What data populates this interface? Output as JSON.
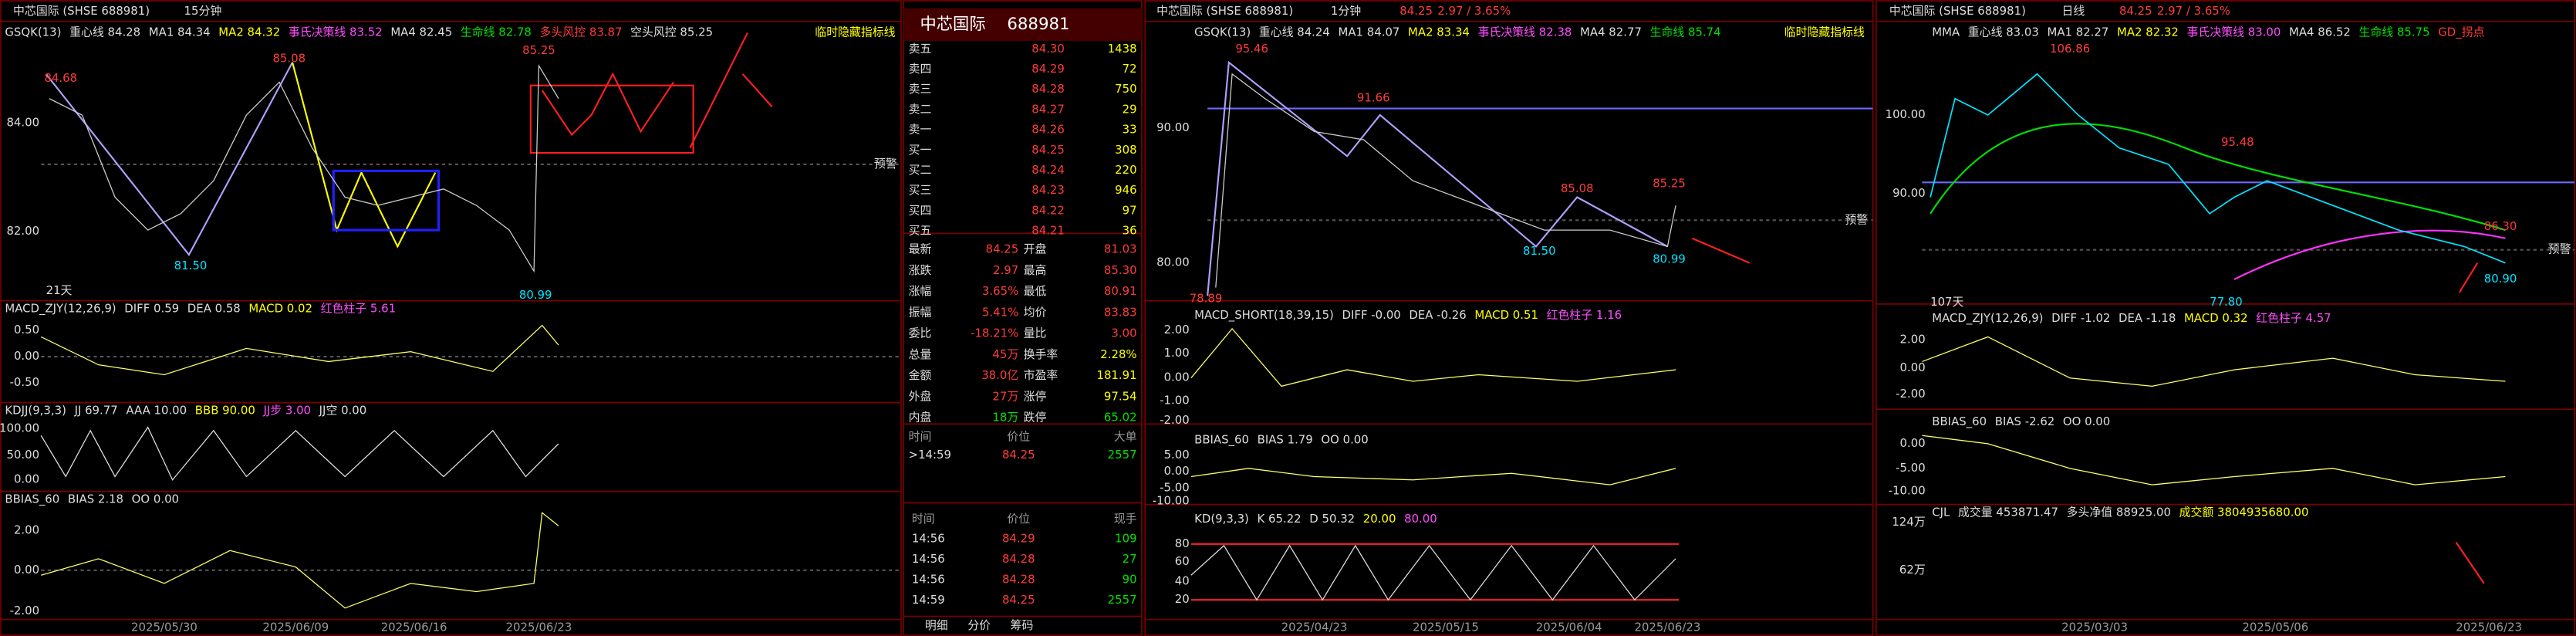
{
  "left": {
    "title": "中芯国际 (SHSE 688981)",
    "period": "15分钟",
    "header": [
      "GSQK(13)",
      "重心线 84.28",
      "MA1 84.34",
      "MA2 84.32",
      "事氏决策线 83.52",
      "MA4 82.45",
      "生命线 82.78",
      "多头风控 83.87",
      "空头风控 85.25"
    ],
    "hidden_note": "临时隐藏指标线",
    "price_labels": [
      "84.68",
      "85.08",
      "85.25",
      "81.50",
      "80.99"
    ],
    "y_labels": [
      "84.00",
      "82.00"
    ],
    "alert": "预警",
    "days": "21天",
    "macd": {
      "header": [
        "MACD_ZJY(12,26,9)",
        "DIFF 0.59",
        "DEA 0.58",
        "MACD 0.02",
        "红色柱子 5.61"
      ],
      "y_labels": [
        "0.50",
        "0.00",
        "-0.50"
      ]
    },
    "kdj": {
      "header": [
        "KDJJ(9,3,3)",
        "JJ 69.77",
        "AAA 10.00",
        "BBB 90.00",
        "JJ步 3.00",
        "JJ空 0.00"
      ],
      "y_labels": [
        "100.00",
        "50.00",
        "0.00"
      ]
    },
    "bias": {
      "header": [
        "BBIAS_60",
        "BIAS 2.18",
        "OO 0.00"
      ],
      "y_labels": [
        "2.00",
        "0.00",
        "-2.00"
      ]
    },
    "dates": [
      "2025/05/30",
      "2025/06/09",
      "2025/06/16",
      "2025/06/23"
    ]
  },
  "quote": {
    "title": "中芯国际",
    "code": "688981",
    "book": [
      [
        "卖五",
        "84.30",
        "1438"
      ],
      [
        "卖四",
        "84.29",
        "72"
      ],
      [
        "卖三",
        "84.28",
        "750"
      ],
      [
        "卖二",
        "84.27",
        "29"
      ],
      [
        "卖一",
        "84.26",
        "33"
      ],
      [
        "买一",
        "84.25",
        "308"
      ],
      [
        "买二",
        "84.24",
        "220"
      ],
      [
        "买三",
        "84.23",
        "946"
      ],
      [
        "买四",
        "84.22",
        "97"
      ],
      [
        "买五",
        "84.21",
        "36"
      ]
    ],
    "stats": [
      [
        "最新",
        "84.25",
        "开盘",
        "81.03"
      ],
      [
        "涨跌",
        "2.97",
        "最高",
        "85.30"
      ],
      [
        "涨幅",
        "3.65%",
        "最低",
        "80.91"
      ],
      [
        "振幅",
        "5.41%",
        "均价",
        "83.83"
      ],
      [
        "委比",
        "-18.21%",
        "量比",
        "3.00"
      ],
      [
        "总量",
        "45万",
        "换手率",
        "2.28%"
      ],
      [
        "金额",
        "38.0亿",
        "市盈率",
        "181.91"
      ],
      [
        "外盘",
        "27万",
        "涨停",
        "97.54"
      ],
      [
        "内盘",
        "18万",
        "跌停",
        "65.02"
      ]
    ],
    "big_header": [
      "时间",
      "价位",
      "大单"
    ],
    "big_rows": [
      [
        ">14:59",
        "84.25",
        "2557"
      ]
    ],
    "tick_header": [
      "时间",
      "价位",
      "现手"
    ],
    "ticks": [
      [
        "14:56",
        "84.29",
        "109"
      ],
      [
        "14:56",
        "84.28",
        "27"
      ],
      [
        "14:56",
        "84.28",
        "90"
      ],
      [
        "14:59",
        "84.25",
        "2557"
      ]
    ],
    "tabs": [
      "明细",
      "分价",
      "筹码"
    ]
  },
  "middle": {
    "title": "中芯国际 (SHSE 688981)",
    "period": "1分钟",
    "price": "84.25",
    "change": "2.97 / 3.65%",
    "header": [
      "GSQK(13)",
      "重心线 84.24",
      "MA1 84.07",
      "MA2 83.34",
      "事氏决策线 82.38",
      "MA4 82.77",
      "生命线 85.74"
    ],
    "hidden_note": "临时隐藏指标线",
    "price_labels": [
      "95.46",
      "91.66",
      "85.08",
      "85.25",
      "81.50",
      "80.99",
      "78.89"
    ],
    "y_labels": [
      "90.00",
      "80.00"
    ],
    "alert": "预警",
    "macd": {
      "header": [
        "MACD_SHORT(18,39,15)",
        "DIFF -0.00",
        "DEA -0.26",
        "MACD 0.51",
        "红色柱子 1.16"
      ],
      "y_labels": [
        "2.00",
        "1.00",
        "0.00",
        "-1.00",
        "-2.00"
      ]
    },
    "bias": {
      "header": [
        "BBIAS_60",
        "BIAS 1.79",
        "OO 0.00"
      ],
      "y_labels": [
        "5.00",
        "0.00",
        "-5.00",
        "-10.00"
      ]
    },
    "kd": {
      "header": [
        "KD(9,3,3)",
        "K 65.22",
        "D 50.32",
        "20.00",
        "80.00"
      ],
      "y_labels": [
        "80",
        "60",
        "40",
        "20"
      ]
    },
    "dates": [
      "2025/04/23",
      "2025/05/15",
      "2025/06/04",
      "2025/06/23"
    ]
  },
  "right": {
    "title": "中芯国际 (SHSE 688981)",
    "period": "日线",
    "price": "84.25",
    "change": "2.97 / 3.65%",
    "header": [
      "MMA",
      "重心线 83.03",
      "MA1 82.27",
      "MA2 82.32",
      "事氏决策线 83.00",
      "MA4 86.52",
      "生命线 85.75",
      "GD_拐点"
    ],
    "price_labels": [
      "106.86",
      "95.48",
      "86.30",
      "80.90",
      "77.80"
    ],
    "y_labels": [
      "100.00",
      "90.00"
    ],
    "alert": "预警",
    "days": "107天",
    "macd": {
      "header": [
        "MACD_ZJY(12,26,9)",
        "DIFF -1.02",
        "DEA -1.18",
        "MACD 0.32",
        "红色柱子 4.57"
      ],
      "y_labels": [
        "2.00",
        "0.00",
        "-2.00"
      ]
    },
    "bias": {
      "header": [
        "BBIAS_60",
        "BIAS -2.62",
        "OO 0.00"
      ],
      "y_labels": [
        "0.00",
        "-5.00",
        "-10.00"
      ]
    },
    "vol": {
      "header": [
        "CJL",
        "成交量 453871.47",
        "多头净值 88925.00",
        "成交额 3804935680.00"
      ],
      "y_labels": [
        "124万",
        "62万"
      ]
    },
    "dates": [
      "2025/03/03",
      "2025/05/06",
      "2025/06/23"
    ]
  }
}
